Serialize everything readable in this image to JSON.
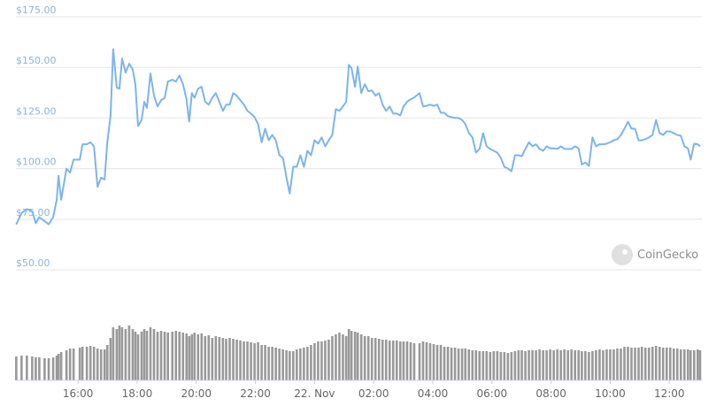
{
  "chart_data": {
    "type": "line",
    "x": [
      13.91,
      14.09,
      14.27,
      14.45,
      14.57,
      14.69,
      14.87,
      15.01,
      15.16,
      15.28,
      15.34,
      15.43,
      15.61,
      15.73,
      15.85,
      16.06,
      16.15,
      16.3,
      16.42,
      16.54,
      16.66,
      16.78,
      16.9,
      16.99,
      17.1,
      17.19,
      17.31,
      17.4,
      17.49,
      17.61,
      17.73,
      17.85,
      17.94,
      18.03,
      18.15,
      18.24,
      18.33,
      18.45,
      18.57,
      18.69,
      18.81,
      18.93,
      19.04,
      19.19,
      19.31,
      19.43,
      19.55,
      19.67,
      19.76,
      19.85,
      19.94,
      20.06,
      20.18,
      20.3,
      20.42,
      20.54,
      20.66,
      20.78,
      20.9,
      21.01,
      21.13,
      21.25,
      21.37,
      21.49,
      21.61,
      21.73,
      21.85,
      21.97,
      22.09,
      22.21,
      22.33,
      22.45,
      22.57,
      22.69,
      22.81,
      22.93,
      23.05,
      23.16,
      23.28,
      23.4,
      23.52,
      23.64,
      23.76,
      23.88,
      24.0,
      24.12,
      24.24,
      24.36,
      24.48,
      24.6,
      24.72,
      24.84,
      24.96,
      25.07,
      25.16,
      25.25,
      25.37,
      25.46,
      25.58,
      25.7,
      25.82,
      25.94,
      26.06,
      26.18,
      26.3,
      26.42,
      26.54,
      26.66,
      26.78,
      26.9,
      27.01,
      27.13,
      27.25,
      27.37,
      27.55,
      27.67,
      27.79,
      27.91,
      28.03,
      28.15,
      28.27,
      28.39,
      28.51,
      28.63,
      28.75,
      28.87,
      28.99,
      29.1,
      29.22,
      29.34,
      29.46,
      29.58,
      29.7,
      29.82,
      29.94,
      30.06,
      30.18,
      30.3,
      30.42,
      30.54,
      30.66,
      30.78,
      30.9,
      31.01,
      31.13,
      31.25,
      31.37,
      31.49,
      31.61,
      31.73,
      31.85,
      31.97,
      32.09,
      32.21,
      32.33,
      32.45,
      32.57,
      32.69,
      32.81,
      32.93,
      33.04,
      33.16,
      33.28,
      33.4,
      33.52,
      33.64,
      33.76,
      33.88,
      34.0,
      34.12,
      34.24,
      34.36,
      34.48,
      34.6,
      34.72,
      34.84,
      34.96,
      35.07,
      35.19,
      35.31,
      35.43,
      35.55,
      35.67,
      35.79,
      35.91,
      36.03,
      36.15,
      36.27,
      36.39,
      36.51,
      36.63,
      36.72,
      36.84,
      36.96,
      37.04
    ],
    "series": [
      {
        "color": "#7cb5ec",
        "values": [
          72.4,
          78,
          80,
          79,
          73,
          76,
          74,
          72.5,
          76,
          84.6,
          96.5,
          84.6,
          100,
          98,
          104.4,
          104.4,
          112,
          112,
          113,
          111,
          91,
          95.5,
          94.6,
          113,
          126,
          159,
          140,
          139.5,
          154.4,
          147.4,
          151.8,
          149,
          141.7,
          121,
          124,
          133,
          130,
          147,
          136,
          130.7,
          133.8,
          135,
          143,
          143.9,
          143,
          146,
          141.7,
          134.2,
          123.2,
          137.3,
          135,
          139.5,
          140.4,
          133,
          131.6,
          135,
          137.3,
          133,
          128.5,
          131.6,
          131.6,
          137.3,
          136,
          133.8,
          131.6,
          128.5,
          127.2,
          125.4,
          122,
          113,
          119.7,
          114,
          116.6,
          114,
          106.6,
          105.3,
          95.6,
          87.7,
          100.9,
          100.9,
          106.6,
          100.9,
          108.8,
          106.6,
          114,
          112.3,
          115.4,
          111,
          114,
          116.6,
          129.4,
          128.5,
          130.7,
          133,
          151.3,
          149.6,
          140.4,
          150.4,
          137.3,
          141.7,
          138.2,
          138.6,
          136,
          137.3,
          131.6,
          128.5,
          130.7,
          127.2,
          127.2,
          126.3,
          130.7,
          133,
          134.2,
          135.1,
          137.3,
          130.7,
          131,
          131.6,
          131,
          131.6,
          127.6,
          127.6,
          125.9,
          125.4,
          125,
          125,
          124,
          122,
          117.5,
          115.4,
          107.9,
          109.7,
          117.5,
          111,
          109.7,
          108.8,
          107.9,
          105.3,
          100.9,
          100,
          98.7,
          106.6,
          106.6,
          106.1,
          109.7,
          113,
          111,
          112,
          109.7,
          108.8,
          111,
          110,
          110,
          109.7,
          111,
          109.7,
          109.7,
          109.7,
          111,
          110,
          102,
          103,
          101.3,
          115.4,
          111,
          112,
          112,
          112.3,
          113,
          114,
          114.5,
          116.6,
          119.7,
          123.2,
          119.7,
          119.7,
          114,
          114,
          114.5,
          115.4,
          116.6,
          124,
          117.5,
          116.6,
          118.4,
          118.4,
          117.5,
          116.6,
          116.2,
          111,
          110,
          104.4,
          112.3,
          112,
          111
        ]
      }
    ],
    "volume": [
      27,
      28,
      28,
      27,
      26,
      26,
      25,
      25,
      26,
      28,
      30,
      32,
      34,
      36,
      36,
      37,
      38,
      38,
      39,
      38,
      36,
      35,
      35,
      40,
      48,
      60,
      58,
      62,
      60,
      58,
      62,
      58,
      55,
      52,
      55,
      58,
      56,
      60,
      58,
      55,
      56,
      55,
      54,
      55,
      56,
      55,
      54,
      53,
      50,
      52,
      54,
      52,
      53,
      50,
      51,
      48,
      50,
      49,
      48,
      47,
      48,
      47,
      46,
      45,
      44,
      44,
      43,
      42,
      43,
      40,
      40,
      38,
      38,
      37,
      36,
      35,
      34,
      33,
      33,
      35,
      36,
      37,
      38,
      40,
      42,
      44,
      44,
      45,
      46,
      50,
      52,
      54,
      52,
      50,
      58,
      56,
      55,
      54,
      52,
      50,
      50,
      48,
      48,
      47,
      46,
      46,
      45,
      45,
      45,
      44,
      44,
      44,
      43,
      42,
      42,
      44,
      43,
      42,
      41,
      40,
      40,
      38,
      38,
      37,
      37,
      36,
      36,
      36,
      35,
      34,
      34,
      33,
      33,
      33,
      32,
      33,
      33,
      32,
      32,
      31,
      32,
      33,
      34,
      34,
      33,
      34,
      34,
      34,
      35,
      34,
      34,
      35,
      34,
      35,
      34,
      35,
      34,
      35,
      34,
      34,
      33,
      33,
      32,
      33,
      34,
      35,
      34,
      35,
      35,
      35,
      36,
      36,
      38,
      38,
      37,
      37,
      37,
      38,
      37,
      37,
      38,
      39,
      38,
      37,
      37,
      37,
      36,
      36,
      35,
      35,
      35,
      34,
      34,
      35,
      34
    ],
    "volume_color": "#999999",
    "volume_lim": [
      0,
      70
    ],
    "xlim": [
      13.9,
      37.1
    ],
    "xticks": [
      {
        "value": 16,
        "label": "16:00"
      },
      {
        "value": 18,
        "label": "18:00"
      },
      {
        "value": 20,
        "label": "20:00"
      },
      {
        "value": 22,
        "label": "22:00"
      },
      {
        "value": 24,
        "label": "22. Nov"
      },
      {
        "value": 26,
        "label": "02:00"
      },
      {
        "value": 28,
        "label": "04:00"
      },
      {
        "value": 30,
        "label": "06:00"
      },
      {
        "value": 32,
        "label": "08:00"
      },
      {
        "value": 34,
        "label": "10:00"
      },
      {
        "value": 36,
        "label": "12:00"
      }
    ],
    "ylim": [
      50,
      175
    ],
    "yticks": [
      {
        "value": 175,
        "label": "$175.00"
      },
      {
        "value": 150,
        "label": "$150.00"
      },
      {
        "value": 125,
        "label": "$125.00"
      },
      {
        "value": 100,
        "label": "$100.00"
      },
      {
        "value": 75,
        "label": "$75.00"
      },
      {
        "value": 50,
        "label": "$50.00"
      }
    ],
    "grid": true,
    "watermark": "CoinGecko"
  }
}
